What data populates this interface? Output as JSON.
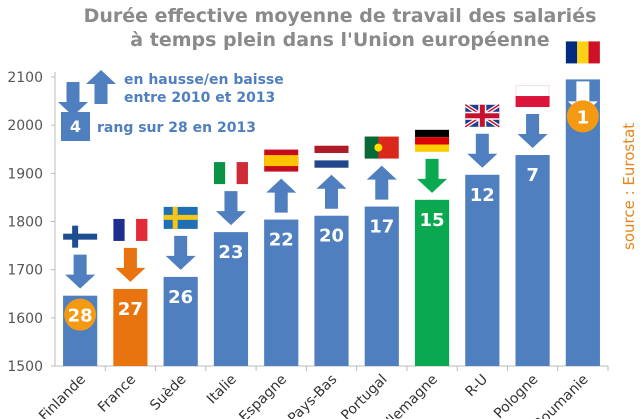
{
  "chart_data": {
    "type": "bar",
    "title_lines": [
      "Durée effective moyenne de travail des salariés",
      "à temps plein dans l'Union européenne"
    ],
    "categories": [
      "Finlande",
      "France",
      "Suède",
      "Italie",
      "Espagne",
      "Pays-Bas",
      "Portugal",
      "Allemagne",
      "R-U",
      "Pologne",
      "Roumanie"
    ],
    "values": [
      1646,
      1660,
      1685,
      1778,
      1804,
      1812,
      1831,
      1845,
      1897,
      1938,
      2095
    ],
    "ranks": [
      "28",
      "27",
      "26",
      "23",
      "22",
      "20",
      "17",
      "15",
      "12",
      "7",
      "1"
    ],
    "trend_2010_2013": [
      "down",
      "down",
      "down",
      "down",
      "up",
      "up",
      "up",
      "down",
      "down",
      "down",
      "down"
    ],
    "bar_colors": [
      "#4f7fbf",
      "#e8740f",
      "#4f7fbf",
      "#4f7fbf",
      "#4f7fbf",
      "#4f7fbf",
      "#4f7fbf",
      "#0aa84f",
      "#4f7fbf",
      "#4f7fbf",
      "#4f7fbf"
    ],
    "ylim": [
      1500,
      2100
    ],
    "yticks": [
      "1500",
      "1600",
      "1700",
      "1800",
      "1900",
      "2000",
      "2100"
    ],
    "xlabel": "",
    "ylabel": "",
    "legend": {
      "arrows": "en hausse/en baisse",
      "arrows2": "entre 2010 et 2013",
      "rank_example": "4",
      "rank_text": "rang sur 28 en 2013"
    },
    "source": "source : Eurostat"
  },
  "colors": {
    "bar": "#4f7fbf",
    "highlight_circle": "#f39a12",
    "title": "#8a8a8a"
  }
}
